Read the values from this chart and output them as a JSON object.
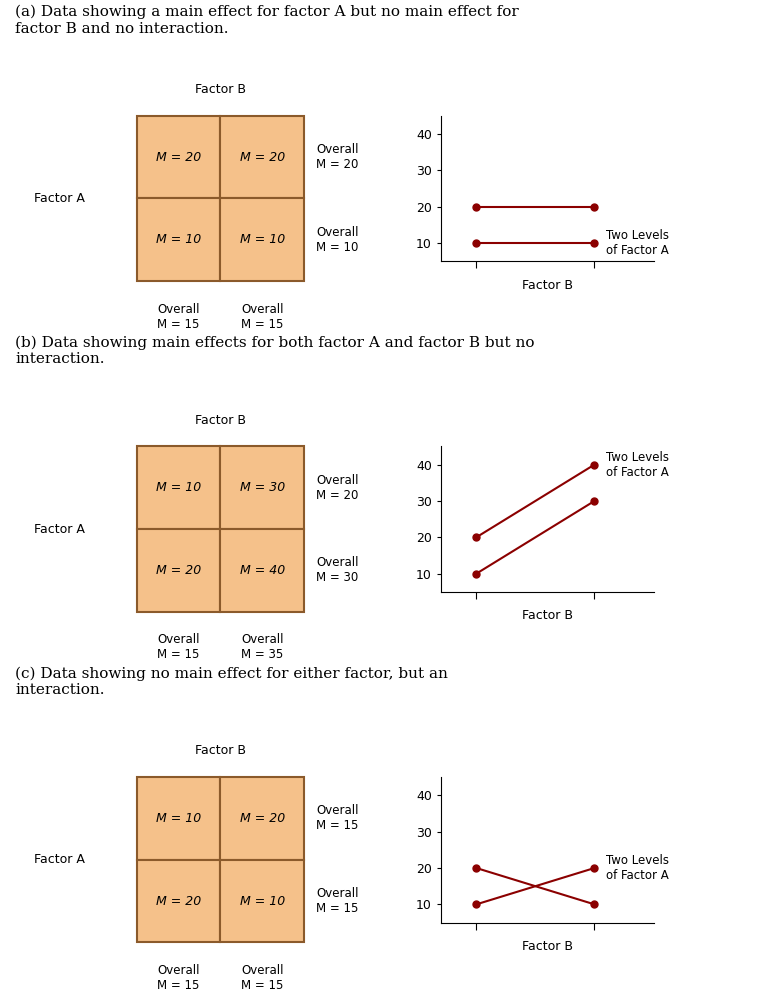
{
  "bg_color": "#ffffff",
  "cell_fill": "#f5c18a",
  "cell_edge": "#8b5a2b",
  "line_color": "#8b0000",
  "marker_color": "#8b0000",
  "panels": [
    {
      "title": "(a) Data showing a main effect for factor A but no main effect for\nfactor B and no interaction.",
      "table": {
        "row1": [
          "M = 20",
          "M = 20"
        ],
        "row2": [
          "M = 10",
          "M = 10"
        ],
        "overall_row1": "M = 20",
        "overall_row2": "M = 10",
        "overall_col1": "M = 15",
        "overall_col2": "M = 15"
      },
      "lines": [
        {
          "label": "",
          "x": [
            1,
            2
          ],
          "y": [
            20,
            20
          ]
        },
        {
          "label": "Two Levels\nof Factor A",
          "x": [
            1,
            2
          ],
          "y": [
            10,
            10
          ]
        }
      ],
      "yticks": [
        10,
        20,
        30,
        40
      ],
      "ylim": [
        5,
        45
      ]
    },
    {
      "title": "(b) Data showing main effects for both factor A and factor B but no\ninteraction.",
      "table": {
        "row1": [
          "M = 10",
          "M = 30"
        ],
        "row2": [
          "M = 20",
          "M = 40"
        ],
        "overall_row1": "M = 20",
        "overall_row2": "M = 30",
        "overall_col1": "M = 15",
        "overall_col2": "M = 35"
      },
      "lines": [
        {
          "label": "",
          "x": [
            1,
            2
          ],
          "y": [
            10,
            30
          ]
        },
        {
          "label": "Two Levels\nof Factor A",
          "x": [
            1,
            2
          ],
          "y": [
            20,
            40
          ]
        }
      ],
      "yticks": [
        10,
        20,
        30,
        40
      ],
      "ylim": [
        5,
        45
      ]
    },
    {
      "title": "(c) Data showing no main effect for either factor, but an\ninteraction.",
      "table": {
        "row1": [
          "M = 10",
          "M = 20"
        ],
        "row2": [
          "M = 20",
          "M = 10"
        ],
        "overall_row1": "M = 15",
        "overall_row2": "M = 15",
        "overall_col1": "M = 15",
        "overall_col2": "M = 15"
      },
      "lines": [
        {
          "label": "",
          "x": [
            1,
            2
          ],
          "y": [
            20,
            10
          ]
        },
        {
          "label": "Two Levels\nof Factor A",
          "x": [
            1,
            2
          ],
          "y": [
            10,
            20
          ]
        }
      ],
      "yticks": [
        10,
        20,
        30,
        40
      ],
      "ylim": [
        5,
        45
      ]
    }
  ]
}
